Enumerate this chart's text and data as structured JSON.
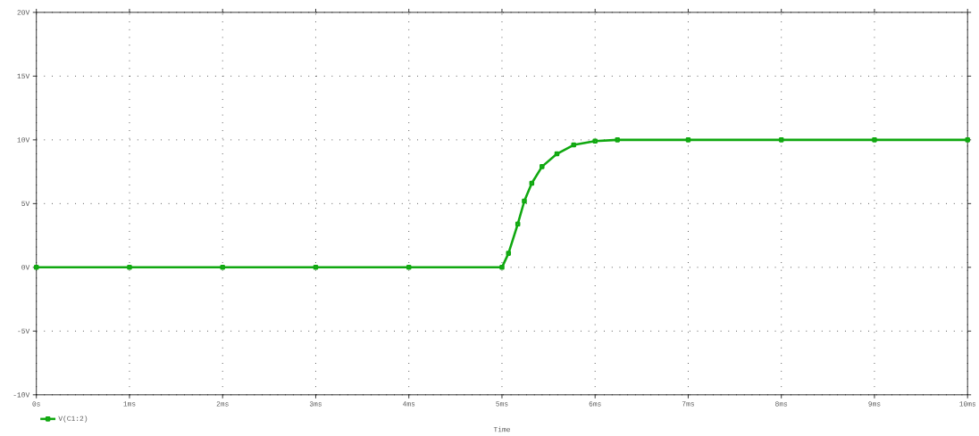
{
  "chart_data": {
    "type": "line",
    "xlabel": "Time",
    "x": [
      0,
      1,
      2,
      3,
      4,
      5,
      5.07,
      5.17,
      5.24,
      5.32,
      5.43,
      5.59,
      5.77,
      6.0,
      6.24,
      7,
      8,
      9,
      10
    ],
    "series": [
      {
        "name": "V(C1:2)",
        "color": "#10a810",
        "values": [
          0,
          0,
          0,
          0,
          0,
          0,
          1.1,
          3.4,
          5.2,
          6.6,
          7.9,
          8.9,
          9.6,
          9.9,
          10,
          10,
          10,
          10,
          10
        ]
      }
    ],
    "xlim": [
      0,
      10
    ],
    "ylim": [
      -10,
      20
    ],
    "xticks": [
      {
        "value": 0,
        "label": "0s"
      },
      {
        "value": 1,
        "label": "1ms"
      },
      {
        "value": 2,
        "label": "2ms"
      },
      {
        "value": 3,
        "label": "3ms"
      },
      {
        "value": 4,
        "label": "4ms"
      },
      {
        "value": 5,
        "label": "5ms"
      },
      {
        "value": 6,
        "label": "6ms"
      },
      {
        "value": 7,
        "label": "7ms"
      },
      {
        "value": 8,
        "label": "8ms"
      },
      {
        "value": 9,
        "label": "9ms"
      },
      {
        "value": 10,
        "label": "10ms"
      }
    ],
    "yticks": [
      {
        "value": -10,
        "label": "-10V"
      },
      {
        "value": -5,
        "label": "-5V"
      },
      {
        "value": 0,
        "label": "0V"
      },
      {
        "value": 5,
        "label": "5V"
      },
      {
        "value": 10,
        "label": "10V"
      },
      {
        "value": 15,
        "label": "15V"
      },
      {
        "value": 20,
        "label": "20V"
      }
    ],
    "grid": true,
    "legend": "bottom left",
    "marker": "square",
    "line_style": "solid"
  }
}
